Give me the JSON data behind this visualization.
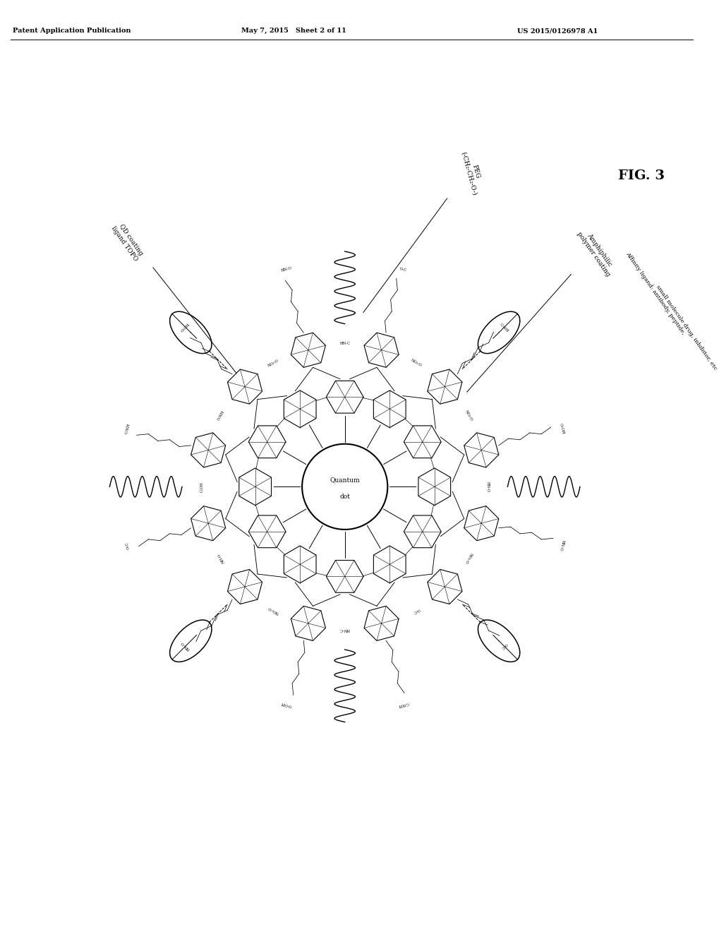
{
  "header_left": "Patent Application Publication",
  "header_center": "May 7, 2015   Sheet 2 of 11",
  "header_right": "US 2015/0126978 A1",
  "fig_label": "FIG. 3",
  "center_label_1": "Quantum",
  "center_label_2": "dot",
  "label_qd_coating": "QD coating\nligand TOPO",
  "label_peg": "PEG\n(-CH₂-CH₂-O-)",
  "label_amphiphilic": "Amphiphilic\npolymer coating",
  "label_affinity_1": "Affinity ligand: antibody, peptide,",
  "label_affinity_2": "small molecule drug, inhibitor, etc",
  "bg": "#ffffff",
  "fg": "#000000"
}
